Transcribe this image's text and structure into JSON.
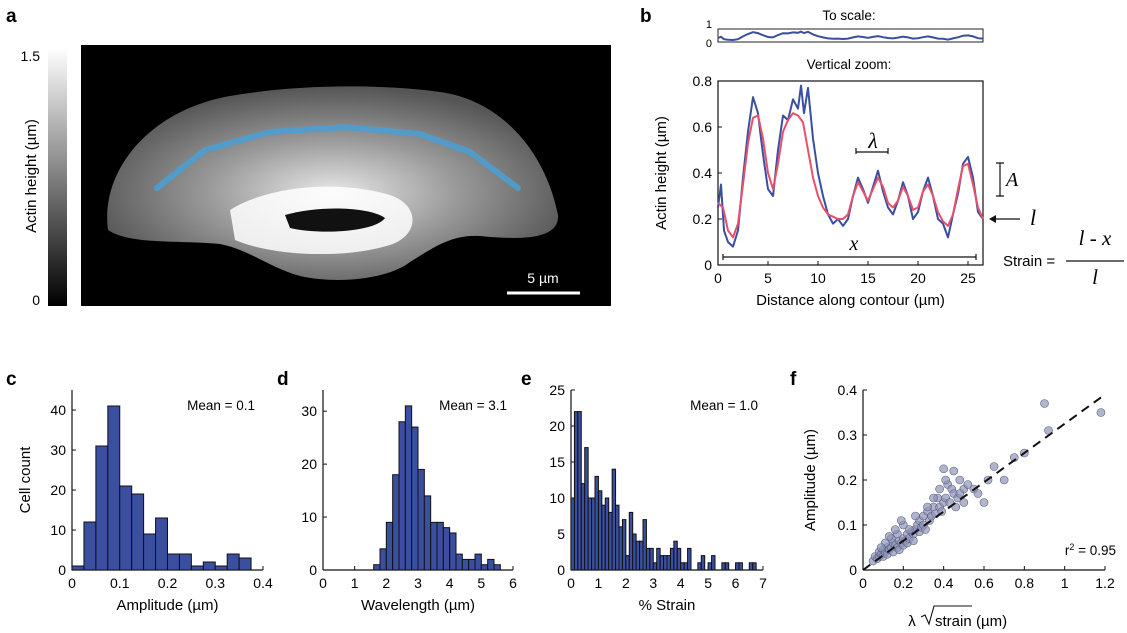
{
  "panels": {
    "a": {
      "label": "a",
      "colorbar": {
        "title": "Actin height (µm)",
        "max_label": "1.5",
        "min_label": "0"
      },
      "scalebar_label": "5 µm",
      "contour_color": "#4a9fd4"
    },
    "b": {
      "label": "b",
      "to_scale_title": "To scale:",
      "to_scale_ticks": [
        "1",
        "0"
      ],
      "zoom_title": "Vertical zoom:",
      "symbols": {
        "lambda": "λ",
        "A": "A",
        "l": "l",
        "x": "x"
      },
      "strain_eq": {
        "lhs": "Strain =",
        "numerator": "l - x",
        "denominator": "l"
      }
    },
    "c": {
      "label": "c",
      "mean": "Mean = 0.1"
    },
    "d": {
      "label": "d",
      "mean": "Mean = 3.1"
    },
    "e": {
      "label": "e",
      "mean": "Mean = 1.0"
    },
    "f": {
      "label": "f",
      "r2_text": "r",
      "r2_sup": "2",
      "r2_value": " = 0.95",
      "xlabel_pre": "λ",
      "xlabel_rad": "strain",
      "xlabel_post": " (µm)"
    }
  },
  "chart_data": [
    {
      "id": "b",
      "type": "line",
      "xlabel": "Distance along contour (µm)",
      "ylabel": "Actin height (µm)",
      "xlim": [
        0,
        26.5
      ],
      "ylim": [
        0,
        0.8
      ],
      "xticks": [
        0,
        5,
        10,
        15,
        20,
        25
      ],
      "yticks": [
        0,
        0.2,
        0.4,
        0.6,
        0.8
      ],
      "series": [
        {
          "color": "#3a4fa0",
          "x": [
            0,
            0.3,
            0.6,
            1,
            1.5,
            2,
            2.5,
            3,
            3.5,
            4,
            4.3,
            4.6,
            5,
            5.5,
            6,
            6.5,
            7,
            7.5,
            8,
            8.3,
            8.6,
            9,
            9.5,
            10,
            10.5,
            11,
            11.5,
            12,
            12.5,
            13,
            13.5,
            14,
            14.5,
            15,
            15.5,
            16,
            16.5,
            17,
            17.5,
            18,
            18.5,
            19,
            19.5,
            20,
            20.5,
            21,
            21.5,
            22,
            22.5,
            23,
            23.5,
            24,
            24.5,
            25,
            25.5,
            26,
            26.5
          ],
          "y": [
            0.25,
            0.35,
            0.15,
            0.1,
            0.08,
            0.15,
            0.38,
            0.58,
            0.73,
            0.66,
            0.55,
            0.45,
            0.33,
            0.3,
            0.5,
            0.65,
            0.63,
            0.72,
            0.68,
            0.78,
            0.66,
            0.77,
            0.55,
            0.4,
            0.3,
            0.22,
            0.18,
            0.2,
            0.17,
            0.2,
            0.3,
            0.38,
            0.33,
            0.27,
            0.34,
            0.41,
            0.32,
            0.25,
            0.22,
            0.28,
            0.36,
            0.3,
            0.2,
            0.23,
            0.32,
            0.38,
            0.3,
            0.2,
            0.18,
            0.12,
            0.22,
            0.31,
            0.44,
            0.47,
            0.38,
            0.23,
            0.2
          ]
        },
        {
          "color": "#e8506a",
          "x": [
            0,
            0.5,
            1,
            1.5,
            2,
            2.5,
            3,
            3.5,
            4,
            4.5,
            5,
            5.5,
            6,
            6.5,
            7,
            7.5,
            8,
            8.5,
            9,
            9.5,
            10,
            10.5,
            11,
            11.5,
            12,
            12.5,
            13,
            13.5,
            14,
            14.5,
            15,
            15.5,
            16,
            16.5,
            17,
            17.5,
            18,
            18.5,
            19,
            19.5,
            20,
            20.5,
            21,
            21.5,
            22,
            22.5,
            23,
            23.5,
            24,
            24.5,
            25,
            25.5,
            26,
            26.5
          ],
          "y": [
            0.27,
            0.25,
            0.15,
            0.12,
            0.18,
            0.35,
            0.53,
            0.64,
            0.65,
            0.55,
            0.4,
            0.33,
            0.44,
            0.58,
            0.63,
            0.66,
            0.65,
            0.62,
            0.5,
            0.38,
            0.3,
            0.25,
            0.22,
            0.21,
            0.2,
            0.2,
            0.22,
            0.3,
            0.36,
            0.32,
            0.28,
            0.33,
            0.38,
            0.34,
            0.27,
            0.25,
            0.28,
            0.34,
            0.3,
            0.24,
            0.25,
            0.32,
            0.35,
            0.3,
            0.23,
            0.19,
            0.17,
            0.22,
            0.33,
            0.43,
            0.44,
            0.35,
            0.25,
            0.2
          ]
        }
      ]
    },
    {
      "id": "c",
      "type": "bar",
      "xlabel": "Amplitude (µm)",
      "ylabel": "Cell count",
      "xlim": [
        0,
        0.4
      ],
      "ylim": [
        0,
        45
      ],
      "xticks": [
        0,
        0.1,
        0.2,
        0.3,
        0.4
      ],
      "yticks": [
        0,
        10,
        20,
        30,
        40
      ],
      "bin_width": 0.025,
      "bin_starts": [
        0,
        0.025,
        0.05,
        0.075,
        0.1,
        0.125,
        0.15,
        0.175,
        0.2,
        0.225,
        0.25,
        0.275,
        0.3,
        0.325,
        0.35
      ],
      "values": [
        1,
        12,
        31,
        41,
        21,
        19,
        9,
        13,
        4,
        4,
        1,
        2,
        1,
        4,
        3
      ],
      "color": "#3a4fa0"
    },
    {
      "id": "d",
      "type": "bar",
      "xlabel": "Wavelength (µm)",
      "ylabel": "",
      "xlim": [
        0,
        6
      ],
      "ylim": [
        0,
        34
      ],
      "xticks": [
        0,
        1,
        2,
        3,
        4,
        5,
        6
      ],
      "yticks": [
        0,
        10,
        20,
        30
      ],
      "bin_width": 0.2,
      "bin_starts": [
        1.6,
        1.8,
        2.0,
        2.2,
        2.4,
        2.6,
        2.8,
        3.0,
        3.2,
        3.4,
        3.6,
        3.8,
        4.0,
        4.2,
        4.4,
        4.6,
        4.8,
        5.0,
        5.2,
        5.4
      ],
      "values": [
        1,
        4,
        9,
        18,
        28,
        31,
        27,
        19,
        14,
        9,
        9,
        8,
        7,
        3,
        2,
        2,
        3,
        1,
        2,
        1
      ],
      "color": "#3a4fa0"
    },
    {
      "id": "e",
      "type": "bar",
      "xlabel": "% Strain",
      "ylabel": "",
      "xlim": [
        0,
        7
      ],
      "ylim": [
        0,
        25
      ],
      "xticks": [
        0,
        1,
        2,
        3,
        4,
        5,
        6,
        7
      ],
      "yticks": [
        0,
        5,
        10,
        15,
        20,
        25
      ],
      "bin_width": 0.125,
      "bin_starts": [
        0,
        0.125,
        0.25,
        0.375,
        0.5,
        0.625,
        0.75,
        0.875,
        1.0,
        1.125,
        1.25,
        1.375,
        1.5,
        1.625,
        1.75,
        1.875,
        2.0,
        2.125,
        2.25,
        2.375,
        2.5,
        2.625,
        2.75,
        2.875,
        3.0,
        3.125,
        3.25,
        3.375,
        3.5,
        3.625,
        3.75,
        3.875,
        4.0,
        4.125,
        4.25,
        4.5,
        4.625,
        4.75,
        5.0,
        5.125,
        5.5,
        5.625,
        6.0,
        6.125,
        6.5,
        6.625
      ],
      "values": [
        10,
        22,
        22,
        12,
        17,
        10,
        10,
        13,
        11,
        9,
        10,
        8,
        14,
        9,
        6,
        7,
        2,
        8,
        5,
        4,
        4,
        7,
        3,
        3,
        1,
        3,
        2,
        2,
        2,
        3,
        4,
        3,
        1,
        1,
        3,
        0,
        1,
        2,
        1,
        2,
        1,
        1,
        1,
        1,
        1,
        1
      ],
      "color": "#3a4fa0"
    },
    {
      "id": "f",
      "type": "scatter",
      "xlabel": "λ √strain (µm)",
      "ylabel": "Amplitude (µm)",
      "xlim": [
        0,
        1.2
      ],
      "ylim": [
        0,
        0.4
      ],
      "xticks": [
        0,
        0.2,
        0.4,
        0.6,
        0.8,
        1.0,
        1.2
      ],
      "yticks": [
        0,
        0.1,
        0.2,
        0.3,
        0.4
      ],
      "fit_line": {
        "x": [
          0,
          1.2
        ],
        "y": [
          0,
          0.39
        ],
        "style": "dashed"
      },
      "points": {
        "x": [
          0.05,
          0.06,
          0.07,
          0.08,
          0.08,
          0.09,
          0.1,
          0.1,
          0.11,
          0.12,
          0.12,
          0.13,
          0.14,
          0.15,
          0.15,
          0.16,
          0.17,
          0.18,
          0.18,
          0.19,
          0.2,
          0.2,
          0.21,
          0.22,
          0.22,
          0.23,
          0.24,
          0.25,
          0.25,
          0.26,
          0.27,
          0.28,
          0.28,
          0.29,
          0.3,
          0.3,
          0.31,
          0.32,
          0.33,
          0.34,
          0.35,
          0.36,
          0.37,
          0.38,
          0.39,
          0.4,
          0.4,
          0.41,
          0.42,
          0.43,
          0.44,
          0.45,
          0.46,
          0.47,
          0.48,
          0.5,
          0.5,
          0.52,
          0.55,
          0.57,
          0.6,
          0.62,
          0.65,
          0.7,
          0.75,
          0.8,
          0.9,
          0.92,
          1.18,
          0.14,
          0.17,
          0.2,
          0.23,
          0.26,
          0.32,
          0.35,
          0.38,
          0.41,
          0.45,
          0.48,
          0.11,
          0.09,
          0.13,
          0.16,
          0.19
        ],
        "y": [
          0.02,
          0.03,
          0.025,
          0.03,
          0.04,
          0.035,
          0.03,
          0.045,
          0.04,
          0.05,
          0.035,
          0.045,
          0.05,
          0.04,
          0.06,
          0.055,
          0.05,
          0.065,
          0.045,
          0.06,
          0.07,
          0.055,
          0.065,
          0.08,
          0.06,
          0.07,
          0.085,
          0.08,
          0.065,
          0.09,
          0.1,
          0.085,
          0.11,
          0.095,
          0.12,
          0.1,
          0.09,
          0.13,
          0.11,
          0.12,
          0.14,
          0.125,
          0.16,
          0.14,
          0.13,
          0.15,
          0.225,
          0.16,
          0.19,
          0.15,
          0.18,
          0.17,
          0.14,
          0.16,
          0.2,
          0.15,
          0.18,
          0.19,
          0.18,
          0.17,
          0.15,
          0.2,
          0.23,
          0.2,
          0.25,
          0.26,
          0.37,
          0.31,
          0.35,
          0.07,
          0.08,
          0.1,
          0.09,
          0.12,
          0.14,
          0.16,
          0.18,
          0.2,
          0.22,
          0.17,
          0.06,
          0.05,
          0.075,
          0.09,
          0.11
        ],
        "color": "#8f94b8"
      }
    }
  ]
}
